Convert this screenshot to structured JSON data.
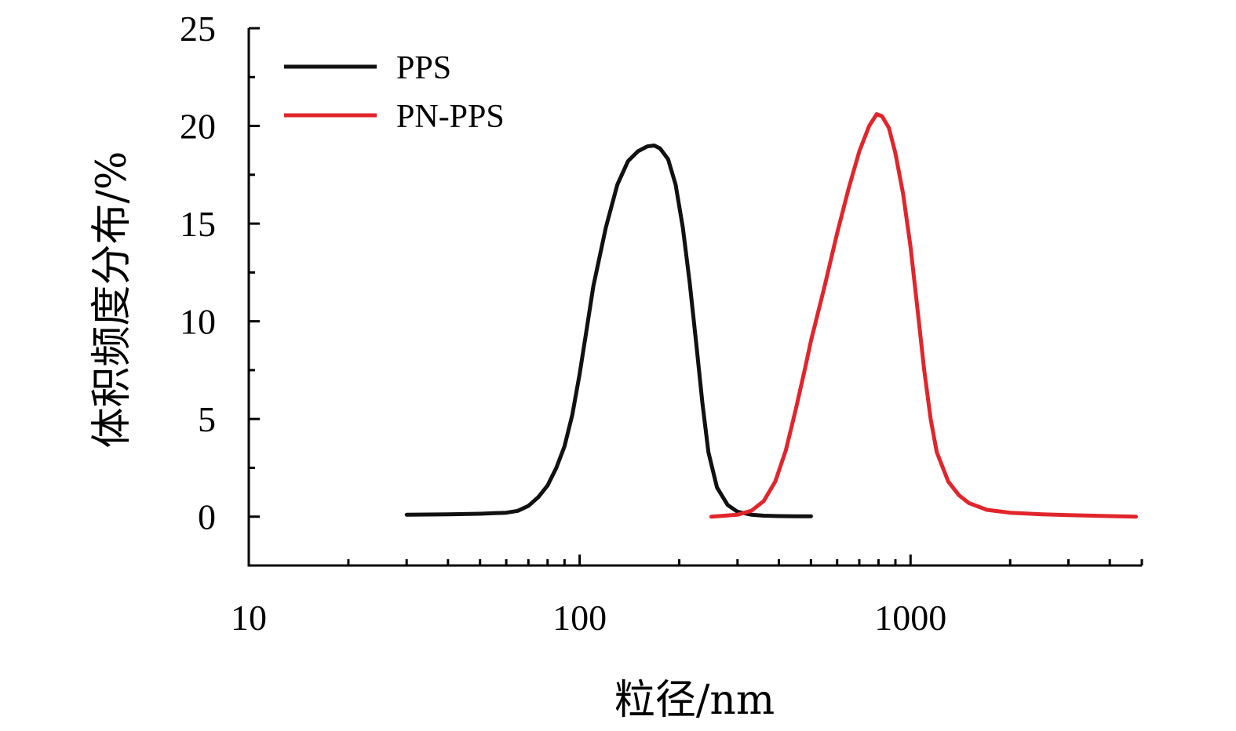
{
  "chart_data": {
    "type": "line",
    "xlabel": "粒径/nm",
    "ylabel": "体积频度分布/%",
    "xscale": "log",
    "xlim": [
      10,
      5000
    ],
    "ylim": [
      -2.5,
      25
    ],
    "x_ticks": [
      10,
      100,
      1000
    ],
    "x_tick_labels": [
      "10",
      "100",
      "1000"
    ],
    "y_ticks": [
      0,
      5,
      10,
      15,
      20,
      25
    ],
    "y_tick_labels": [
      "0",
      "5",
      "10",
      "15",
      "20",
      "25"
    ],
    "grid": false,
    "legend_position": "top-left",
    "series": [
      {
        "name": "PPS",
        "color": "#111111",
        "x": [
          30,
          40,
          50,
          60,
          65,
          70,
          75,
          80,
          85,
          90,
          95,
          100,
          105,
          110,
          120,
          130,
          140,
          150,
          160,
          168,
          175,
          185,
          195,
          205,
          215,
          225,
          235,
          245,
          260,
          280,
          300,
          330,
          360,
          400,
          450,
          500
        ],
        "y": [
          0.1,
          0.12,
          0.15,
          0.2,
          0.3,
          0.55,
          1.0,
          1.6,
          2.5,
          3.6,
          5.2,
          7.3,
          9.6,
          11.8,
          14.8,
          17.0,
          18.2,
          18.7,
          18.95,
          19.0,
          18.85,
          18.3,
          17.0,
          14.8,
          12.0,
          8.9,
          5.8,
          3.3,
          1.5,
          0.6,
          0.25,
          0.1,
          0.05,
          0.03,
          0.02,
          0.02
        ]
      },
      {
        "name": "PN-PPS",
        "color": "#e0262c",
        "x": [
          250,
          300,
          330,
          360,
          390,
          420,
          450,
          480,
          500,
          550,
          600,
          650,
          700,
          750,
          790,
          820,
          860,
          900,
          950,
          1000,
          1050,
          1100,
          1150,
          1200,
          1300,
          1400,
          1500,
          1700,
          2000,
          2500,
          3000,
          4000,
          4800
        ],
        "y": [
          0.0,
          0.1,
          0.3,
          0.8,
          1.8,
          3.4,
          5.5,
          7.6,
          9.0,
          11.8,
          14.5,
          16.8,
          18.7,
          20.0,
          20.6,
          20.5,
          19.9,
          18.6,
          16.5,
          13.8,
          10.6,
          7.5,
          5.0,
          3.3,
          1.8,
          1.1,
          0.7,
          0.35,
          0.2,
          0.12,
          0.08,
          0.03,
          0.0
        ]
      }
    ]
  }
}
